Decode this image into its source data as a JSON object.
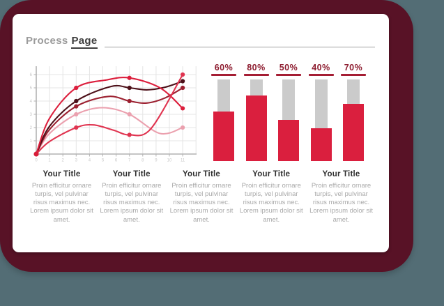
{
  "background": {
    "outer_color": "#536d75",
    "frame_color": "#581226",
    "slide_color": "#ffffff"
  },
  "header": {
    "title_light": "Process",
    "title_dark": "Page"
  },
  "columns": [
    {
      "title": "Your Title",
      "body": "Proin efficitur ornare turpis, vel pulvinar risus maximus nec. Lorem ipsum dolor sit amet."
    },
    {
      "title": "Your Title",
      "body": "Proin efficitur ornare turpis, vel pulvinar risus maximus nec. Lorem ipsum dolor sit amet."
    },
    {
      "title": "Your Title",
      "body": "Proin efficitur ornare turpis, vel pulvinar risus maximus nec. Lorem ipsum dolor sit amet."
    },
    {
      "title": "Your Title",
      "body": "Proin efficitur ornare turpis, vel pulvinar risus maximus nec. Lorem ipsum dolor sit amet."
    },
    {
      "title": "Your Title",
      "body": "Proin efficitur ornare turpis, vel pulvinar risus maximus nec. Lorem ipsum dolor sit amet."
    }
  ],
  "chart_data": [
    {
      "type": "line",
      "title": "",
      "xlabel": "",
      "ylabel": "",
      "xlim": [
        0,
        12
      ],
      "ylim": [
        0,
        6.8
      ],
      "x_ticks": [
        0,
        1,
        2,
        3,
        4,
        5,
        6,
        7,
        8,
        9,
        10,
        11
      ],
      "y_ticks": [
        1,
        2,
        3,
        4,
        5,
        6
      ],
      "grid": true,
      "marker_x": [
        3,
        7,
        11
      ],
      "axis_color": "#b2b2b2",
      "grid_color": "#e4e4e4",
      "tick_label_color": "#c7c7c7",
      "origin_dot_color": "#d81e3a",
      "series": [
        {
          "name": "line-4-pink",
          "color": "#eba0ae",
          "points": [
            [
              0,
              0
            ],
            [
              1,
              1.55
            ],
            [
              3,
              3.0
            ],
            [
              5,
              3.5
            ],
            [
              7,
              3.0
            ],
            [
              9.3,
              1.55
            ],
            [
              11,
              2.0
            ]
          ]
        },
        {
          "name": "line-3-dark-red",
          "color": "#9c2030",
          "points": [
            [
              0,
              0
            ],
            [
              1,
              1.85
            ],
            [
              3,
              3.6
            ],
            [
              5.4,
              4.35
            ],
            [
              7,
              4.0
            ],
            [
              8.3,
              3.85
            ],
            [
              9.7,
              4.25
            ],
            [
              11,
              5.0
            ]
          ]
        },
        {
          "name": "line-2-maroon",
          "color": "#4d1019",
          "points": [
            [
              0,
              0
            ],
            [
              1,
              2.1
            ],
            [
              3,
              4.0
            ],
            [
              5.6,
              5.1
            ],
            [
              7,
              5.0
            ],
            [
              8.3,
              4.85
            ],
            [
              9.7,
              5.05
            ],
            [
              11,
              5.5
            ]
          ]
        },
        {
          "name": "line-1-crimson",
          "color": "#dc1e3c",
          "points": [
            [
              0,
              0
            ],
            [
              1,
              2.7
            ],
            [
              3,
              5.0
            ],
            [
              5.3,
              5.6
            ],
            [
              7,
              5.75
            ],
            [
              9.3,
              5.0
            ],
            [
              11,
              3.45
            ]
          ]
        },
        {
          "name": "line-5-medium-red",
          "color": "#e03450",
          "points": [
            [
              0,
              0
            ],
            [
              1,
              0.95
            ],
            [
              3,
              2.0
            ],
            [
              4.3,
              2.2
            ],
            [
              5.8,
              1.8
            ],
            [
              7,
              1.45
            ],
            [
              8.6,
              1.9
            ],
            [
              11,
              6.0
            ]
          ]
        }
      ]
    },
    {
      "type": "bar",
      "title": "",
      "categories": [
        "60%",
        "80%",
        "50%",
        "40%",
        "70%"
      ],
      "values": [
        60,
        80,
        50,
        40,
        70
      ],
      "ymax": 100,
      "bar_color": "#da1f3e",
      "track_color": "#cbcbcb",
      "label_color": "#8e1d30",
      "underline_color": "#a51e34"
    }
  ]
}
